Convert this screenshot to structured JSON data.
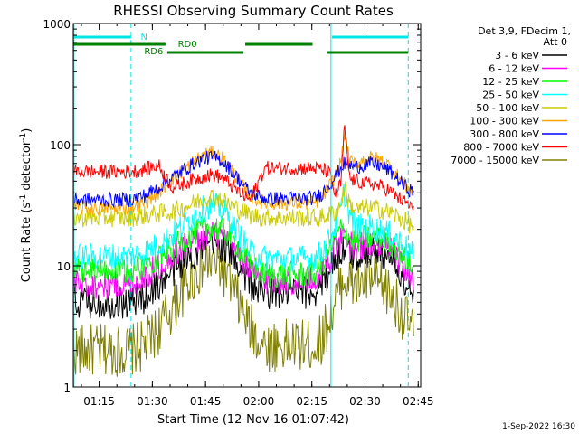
{
  "chart_data": {
    "type": "line",
    "title": "RHESSI Observing Summary Count Rates",
    "xlabel": "Start Time (12-Nov-16 01:07:42)",
    "ylabel_prefix": "Count Rate (s",
    "ylabel_sup1": "-1",
    "ylabel_mid": " detector",
    "ylabel_sup2": "-1",
    "ylabel_suffix": ")",
    "x_unit": "minutes after 01:07:42 UT",
    "x_range": [
      0,
      98
    ],
    "y_scale": "log",
    "y_range": [
      1,
      1000
    ],
    "x_ticks": [
      {
        "label": "01:15",
        "t": 7.3
      },
      {
        "label": "01:30",
        "t": 22.3
      },
      {
        "label": "01:45",
        "t": 37.3
      },
      {
        "label": "02:00",
        "t": 52.3
      },
      {
        "label": "02:15",
        "t": 67.3
      },
      {
        "label": "02:30",
        "t": 82.3
      },
      {
        "label": "02:45",
        "t": 97.3
      }
    ],
    "y_ticks": [
      {
        "label": "1",
        "v": 1
      },
      {
        "label": "10",
        "v": 10
      },
      {
        "label": "100",
        "v": 100
      },
      {
        "label": "1000",
        "v": 1000
      }
    ],
    "legend_header": [
      "Det 3,9, FDecim 1,",
      "Att 0"
    ],
    "legend_position": "right",
    "series": [
      {
        "name": "3 - 6 keV",
        "color": "#000000",
        "x": [
          0,
          16,
          20,
          24,
          28,
          32,
          36,
          38,
          40,
          42,
          44,
          46,
          48,
          50,
          54,
          68,
          70,
          72,
          74,
          75.5,
          76.5,
          78,
          80,
          82,
          84,
          86,
          88,
          90,
          92,
          94,
          96
        ],
        "y": [
          5,
          5,
          5.5,
          7,
          9,
          11.5,
          14,
          14.5,
          15,
          14.5,
          13,
          11,
          9,
          7,
          6,
          6,
          7,
          9,
          12,
          13,
          14,
          12.5,
          12,
          13,
          13.5,
          13,
          12.5,
          11,
          9,
          7,
          5.5
        ]
      },
      {
        "name": "6 - 12 keV",
        "color": "#ff00ff",
        "x": [
          0,
          16,
          20,
          24,
          28,
          32,
          36,
          38,
          40,
          42,
          44,
          46,
          48,
          50,
          54,
          68,
          70,
          72,
          74,
          75.5,
          76.5,
          78,
          80,
          82,
          84,
          86,
          88,
          90,
          92,
          94,
          96
        ],
        "y": [
          7,
          7,
          8,
          10,
          12,
          15,
          17,
          18,
          18,
          17,
          15,
          13,
          11,
          9,
          7.5,
          7.5,
          9,
          11,
          14,
          16,
          17,
          15,
          14,
          15,
          15,
          14.5,
          14,
          13,
          11,
          9,
          7
        ]
      },
      {
        "name": "12 - 25 keV",
        "color": "#00ff00",
        "x": [
          0,
          16,
          20,
          24,
          28,
          32,
          36,
          38,
          40,
          42,
          44,
          46,
          48,
          50,
          54,
          68,
          70,
          72,
          74,
          75.5,
          76.5,
          78,
          80,
          82,
          84,
          86,
          88,
          90,
          92,
          94,
          96
        ],
        "y": [
          9,
          9,
          10,
          12,
          14,
          17,
          20,
          21,
          21,
          20,
          18,
          15,
          12,
          10,
          8.5,
          8.5,
          10,
          13,
          17,
          20,
          20,
          17,
          16,
          17,
          17,
          16.5,
          16,
          15,
          13,
          11,
          9
        ]
      },
      {
        "name": "25 - 50 keV",
        "color": "#00ffff",
        "x": [
          0,
          16,
          20,
          24,
          28,
          32,
          36,
          38,
          40,
          42,
          44,
          46,
          48,
          50,
          54,
          68,
          70,
          72,
          74,
          75.5,
          76.5,
          78,
          80,
          82,
          84,
          86,
          88,
          90,
          92,
          94,
          96
        ],
        "y": [
          12,
          12,
          13,
          15,
          18,
          23,
          29,
          31,
          31,
          29,
          25,
          20,
          16,
          13,
          11.5,
          11.5,
          13,
          16,
          22,
          30,
          40,
          26,
          21,
          21,
          21,
          20,
          19,
          18,
          16,
          14,
          12
        ]
      },
      {
        "name": "50 - 100 keV",
        "color": "#cccc00",
        "x": [
          0,
          16,
          20,
          24,
          28,
          32,
          36,
          38,
          40,
          42,
          44,
          46,
          48,
          50,
          54,
          68,
          70,
          72,
          74,
          75.5,
          76.5,
          78,
          80,
          82,
          84,
          86,
          88,
          90,
          92,
          94,
          96
        ],
        "y": [
          25,
          25,
          26,
          27,
          28,
          31,
          35,
          37,
          37,
          35,
          32,
          30,
          28,
          26,
          25,
          25,
          25,
          26,
          28,
          32,
          45,
          32,
          29,
          30,
          30,
          29.5,
          28.5,
          27,
          25,
          23,
          21
        ]
      },
      {
        "name": "100 - 300 keV",
        "color": "#ffa500",
        "x": [
          0,
          16,
          20,
          24,
          28,
          32,
          36,
          38,
          40,
          42,
          44,
          46,
          48,
          50,
          54,
          68,
          70,
          72,
          74,
          75.5,
          76.5,
          78,
          80,
          82,
          84,
          86,
          88,
          90,
          92,
          94,
          96
        ],
        "y": [
          30,
          30,
          33,
          40,
          52,
          65,
          80,
          85,
          85,
          78,
          66,
          54,
          44,
          37,
          33,
          33,
          36,
          44,
          56,
          72,
          120,
          72,
          70,
          75,
          78,
          76,
          72,
          63,
          53,
          45,
          40
        ]
      },
      {
        "name": "300 - 800 keV",
        "color": "#0000ff",
        "x": [
          0,
          16,
          20,
          24,
          28,
          32,
          36,
          38,
          40,
          42,
          44,
          46,
          48,
          50,
          54,
          68,
          70,
          72,
          74,
          75.5,
          76.5,
          78,
          80,
          82,
          84,
          86,
          88,
          90,
          92,
          94,
          96
        ],
        "y": [
          35,
          35,
          38,
          44,
          54,
          64,
          75,
          78,
          78,
          74,
          64,
          55,
          46,
          40,
          36,
          36,
          39,
          46,
          55,
          65,
          70,
          67,
          66,
          68,
          70,
          68,
          64,
          58,
          50,
          44,
          40
        ]
      },
      {
        "name": "800 - 7000 keV",
        "color": "#ff0000",
        "x": [
          0,
          16,
          20,
          24,
          28,
          32,
          36,
          38,
          40,
          42,
          44,
          46,
          48,
          50,
          54,
          68,
          70,
          72,
          74,
          75.5,
          76.5,
          78,
          80,
          82,
          84,
          86,
          88,
          90,
          92,
          94,
          96
        ],
        "y": [
          60,
          60,
          62,
          68,
          44,
          49,
          54,
          56,
          56,
          53,
          48,
          42,
          38,
          35,
          64,
          64,
          62,
          60,
          38,
          48,
          140,
          52,
          50,
          48,
          48,
          46,
          44,
          40,
          36,
          33,
          30
        ]
      },
      {
        "name": "7000 - 15000 keV",
        "color": "#808000",
        "x": [
          0,
          16,
          20,
          24,
          28,
          32,
          36,
          38,
          40,
          42,
          44,
          46,
          48,
          50,
          54,
          68,
          70,
          72,
          74,
          75.5,
          76.5,
          78,
          80,
          82,
          84,
          86,
          88,
          90,
          92,
          94,
          96
        ],
        "y": [
          2,
          2,
          2.2,
          3,
          4.5,
          7,
          9.5,
          10.5,
          10.5,
          9.5,
          7.5,
          5.5,
          4,
          3,
          2.2,
          2.2,
          2.5,
          3.5,
          5,
          7,
          8,
          7,
          7,
          7.5,
          7.5,
          7,
          6.5,
          5.5,
          4.5,
          3.5,
          3
        ]
      }
    ],
    "vertical_lines": [
      {
        "t": 0.2,
        "style": "solid",
        "color": "#00e5e5"
      },
      {
        "t": 16.3,
        "style": "dashed",
        "color": "#00e5e5"
      },
      {
        "t": 72.7,
        "style": "solid",
        "color": "#00e5e5"
      },
      {
        "t": 94.5,
        "style": "dashed",
        "color": "#00e5e5"
      }
    ],
    "flag_bars": [
      {
        "label": "N",
        "color": "#00e5e5",
        "row": 0,
        "segments": [
          [
            0,
            16.3
          ],
          [
            73,
            94.5
          ]
        ],
        "label_t": 19
      },
      {
        "label": "RD0",
        "color": "#008000",
        "row": 1,
        "segments": [
          [
            0,
            26
          ],
          [
            48.5,
            67.5
          ]
        ],
        "label_t": 29.5
      },
      {
        "label": "RD6",
        "color": "#008000",
        "row": 2,
        "segments": [
          [
            26.5,
            48
          ],
          [
            71.5,
            94.5
          ]
        ],
        "label_t": 20
      }
    ],
    "footer_date": "1-Sep-2022 16:30"
  }
}
